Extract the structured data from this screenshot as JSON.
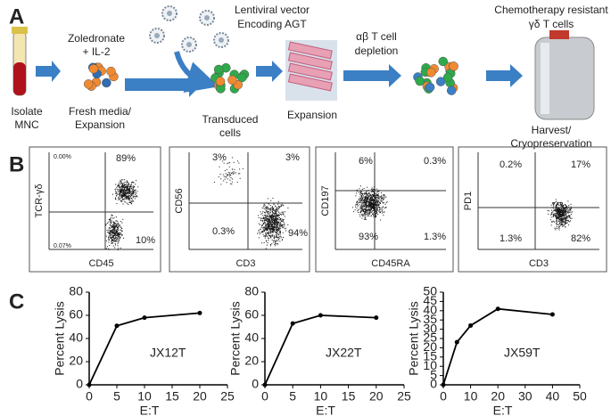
{
  "panel_a": {
    "label": "A",
    "isolate": [
      "Isolate",
      "MNC"
    ],
    "zoledronate": [
      "Zoledronate",
      "+ IL-2"
    ],
    "fresh_media": [
      "Fresh media/",
      "Expansion"
    ],
    "vector": [
      "Lentiviral vector",
      "Encoding AGT"
    ],
    "transduced": [
      "Transduced",
      "cells"
    ],
    "expansion": "Expansion",
    "depletion": [
      "αβ T cell",
      "depletion"
    ],
    "product": [
      "Chemotherapy resistant",
      "γδ T cells"
    ],
    "harvest": [
      "Harvest/",
      "Cryopreservation"
    ]
  },
  "panel_b": {
    "label": "B",
    "plots": [
      {
        "y_label": "TCR-γδ",
        "x_label": "CD45",
        "quadrants": [
          "0.00%",
          "89%",
          "0.07%",
          "10%"
        ]
      },
      {
        "y_label": "CD56",
        "x_label": "CD3",
        "quadrants": [
          "3%",
          "3%",
          "0.3%",
          "94%"
        ]
      },
      {
        "y_label": "CD197",
        "x_label": "CD45RA",
        "quadrants": [
          "6%",
          "0.3%",
          "93%",
          "1.3%"
        ]
      },
      {
        "y_label": "PD1",
        "x_label": "CD3",
        "quadrants": [
          "0.2%",
          "17%",
          "1.3%",
          "82%"
        ]
      }
    ]
  },
  "panel_c": {
    "label": "C"
  },
  "chart_data": [
    {
      "type": "line",
      "annotation": "JX12T",
      "x_label": "E:T",
      "y_label": "Percent Lysis",
      "color": "#000000",
      "x": [
        0,
        5,
        10,
        20
      ],
      "values": [
        0,
        51,
        58,
        62
      ],
      "xlim": [
        0,
        25
      ],
      "xticks": [
        0,
        5,
        10,
        15,
        20,
        25
      ],
      "ylim": [
        0,
        80
      ],
      "yticks": [
        0,
        20,
        40,
        60,
        80
      ]
    },
    {
      "type": "line",
      "annotation": "JX22T",
      "x_label": "E:T",
      "y_label": "Percent Lysis",
      "color": "#000000",
      "x": [
        0,
        5,
        10,
        20
      ],
      "values": [
        0,
        53,
        60,
        58
      ],
      "xlim": [
        0,
        25
      ],
      "xticks": [
        0,
        5,
        10,
        15,
        20,
        25
      ],
      "ylim": [
        0,
        80
      ],
      "yticks": [
        0,
        20,
        40,
        60,
        80
      ]
    },
    {
      "type": "line",
      "annotation": "JX59T",
      "x_label": "E:T",
      "y_label": "Percent Lysis",
      "color": "#000000",
      "x": [
        0,
        5,
        10,
        20,
        40
      ],
      "values": [
        0,
        23,
        32,
        41,
        38
      ],
      "xlim": [
        0,
        50
      ],
      "xticks": [
        0,
        10,
        20,
        30,
        40,
        50
      ],
      "ylim": [
        0,
        50
      ],
      "yticks": [
        0,
        5,
        10,
        15,
        20,
        25,
        30,
        35,
        40,
        45,
        50
      ]
    }
  ]
}
